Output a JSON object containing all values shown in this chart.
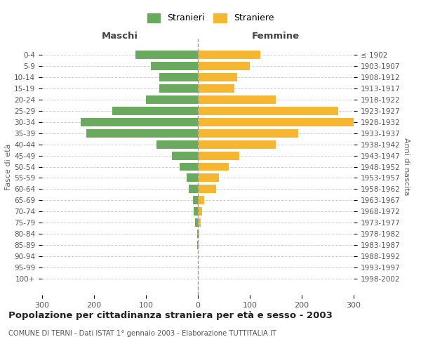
{
  "age_groups": [
    "0-4",
    "5-9",
    "10-14",
    "15-19",
    "20-24",
    "25-29",
    "30-34",
    "35-39",
    "40-44",
    "45-49",
    "50-54",
    "55-59",
    "60-64",
    "65-69",
    "70-74",
    "75-79",
    "80-84",
    "85-89",
    "90-94",
    "95-99",
    "100+"
  ],
  "birth_years": [
    "1998-2002",
    "1993-1997",
    "1988-1992",
    "1983-1987",
    "1978-1982",
    "1973-1977",
    "1968-1972",
    "1963-1967",
    "1958-1962",
    "1953-1957",
    "1948-1952",
    "1943-1947",
    "1938-1942",
    "1933-1937",
    "1928-1932",
    "1923-1927",
    "1918-1922",
    "1913-1917",
    "1908-1912",
    "1903-1907",
    "≤ 1902"
  ],
  "maschi": [
    120,
    90,
    75,
    75,
    100,
    165,
    225,
    215,
    80,
    50,
    35,
    22,
    18,
    10,
    8,
    5,
    2,
    1,
    0,
    0,
    0
  ],
  "femmine": [
    120,
    100,
    75,
    70,
    150,
    270,
    300,
    193,
    150,
    80,
    60,
    40,
    35,
    12,
    8,
    5,
    3,
    1,
    0,
    0,
    0
  ],
  "maschi_color": "#6aaa5e",
  "femmine_color": "#f5b731",
  "background_color": "#ffffff",
  "grid_color": "#cccccc",
  "title": "Popolazione per cittadinanza straniera per età e sesso - 2003",
  "subtitle": "COMUNE DI TERNI - Dati ISTAT 1° gennaio 2003 - Elaborazione TUTTITALIA.IT",
  "xlabel_left": "Maschi",
  "xlabel_right": "Femmine",
  "ylabel_left": "Fasce di età",
  "ylabel_right": "Anni di nascita",
  "legend_stranieri": "Stranieri",
  "legend_straniere": "Straniere",
  "xlim": 300
}
